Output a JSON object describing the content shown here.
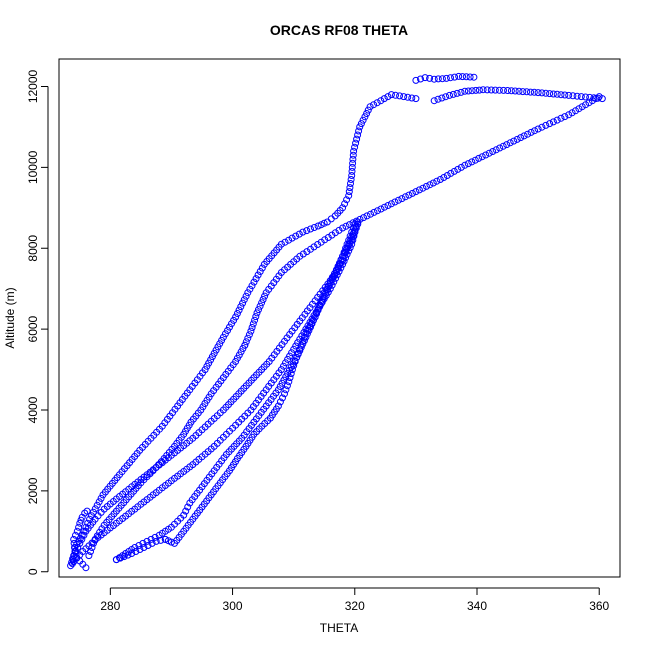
{
  "chart_data": {
    "type": "scatter",
    "title": "ORCAS RF08 THETA",
    "xlabel": "THETA",
    "ylabel": "Altitude (m)",
    "xlim": [
      271.6,
      363.4
    ],
    "ylim": [
      -130,
      12680
    ],
    "xticks": [
      280,
      300,
      320,
      340,
      360
    ],
    "yticks": [
      0,
      2000,
      4000,
      6000,
      8000,
      10000,
      12000
    ],
    "grid": false,
    "legend": "none",
    "marker": "open-circle",
    "color": "#0000ff",
    "traces": [
      {
        "x": [
          276.0,
          274.5,
          274.2,
          275.4,
          276.6,
          278.8,
          281.5,
          284.8,
          288.5,
          291.0,
          293.0,
          295.5,
          297.0,
          298.5,
          300.5,
          302.5,
          305.2,
          308.0,
          311.5,
          314.0,
          315.5,
          316.8,
          318.0,
          319.0,
          319.5,
          319.8,
          320.8,
          322.5,
          326.0,
          330.0
        ],
        "y": [
          100,
          350,
          600,
          900,
          1300,
          1900,
          2400,
          3000,
          3600,
          4100,
          4500,
          5000,
          5400,
          5800,
          6300,
          6900,
          7600,
          8100,
          8400,
          8550,
          8650,
          8800,
          9000,
          9300,
          9800,
          10400,
          11000,
          11500,
          11800,
          11700
        ]
      },
      {
        "x": [
          330.0,
          331.5,
          333.0,
          335.0,
          337.0,
          339.5
        ],
        "y": [
          12150,
          12220,
          12180,
          12200,
          12250,
          12230
        ]
      },
      {
        "x": [
          333.0,
          335.5,
          338.0,
          341.0,
          345.0,
          350.0,
          355.0,
          360.5
        ],
        "y": [
          11650,
          11780,
          11880,
          11920,
          11900,
          11850,
          11780,
          11700
        ]
      },
      {
        "x": [
          360.0,
          355.0,
          350.0,
          346.0,
          342.0,
          338.0,
          334.0,
          330.0,
          326.0,
          322.0,
          318.0,
          314.5,
          311.0,
          308.0,
          305.5,
          304.0,
          303.0,
          302.0
        ],
        "y": [
          11750,
          11300,
          10950,
          10650,
          10350,
          10050,
          9700,
          9400,
          9100,
          8800,
          8500,
          8150,
          7800,
          7400,
          6900,
          6400,
          5950,
          5600
        ]
      },
      {
        "x": [
          302.0,
          300.5,
          298.5,
          296.5,
          294.8,
          293.2,
          292.0,
          290.5,
          288.8,
          287.0,
          285.0,
          283.0,
          281.0,
          279.0,
          277.5,
          276.5
        ],
        "y": [
          5600,
          5200,
          4800,
          4400,
          4000,
          3700,
          3400,
          3100,
          2800,
          2500,
          2200,
          1850,
          1500,
          1150,
          800,
          400
        ]
      },
      {
        "x": [
          320.0,
          318.5,
          317.0,
          315.0,
          313.5,
          312.0,
          311.0,
          310.0,
          309.2,
          308.5,
          307.5,
          306.2,
          304.8,
          303.5,
          302.2,
          300.8,
          299.5,
          298.0,
          296.5,
          295.0,
          293.5,
          292.0,
          290.5,
          289.0
        ],
        "y": [
          8600,
          8000,
          7400,
          6900,
          6300,
          5900,
          5500,
          5100,
          4700,
          4400,
          4100,
          3800,
          3600,
          3400,
          3100,
          2800,
          2500,
          2200,
          1900,
          1600,
          1300,
          1000,
          700,
          800
        ]
      },
      {
        "x": [
          289.0,
          287.5,
          285.5,
          283.5,
          281.0
        ],
        "y": [
          800,
          750,
          600,
          450,
          300
        ]
      },
      {
        "x": [
          281.0,
          282.5,
          284.0,
          286.0,
          288.0,
          290.0,
          292.0,
          293.0,
          295.0,
          297.0,
          299.0,
          301.5,
          303.5,
          305.5,
          307.5,
          309.0,
          310.5,
          312.0,
          313.5,
          315.0,
          316.5,
          318.0,
          319.5,
          320.5
        ],
        "y": [
          300,
          450,
          600,
          750,
          900,
          1100,
          1400,
          1700,
          2100,
          2500,
          2900,
          3300,
          3700,
          4100,
          4500,
          4900,
          5300,
          5800,
          6300,
          6800,
          7300,
          7800,
          8200,
          8600
        ]
      },
      {
        "x": [
          273.5,
          274.0,
          275.0,
          276.0,
          277.5,
          279.0,
          281.0,
          283.5,
          286.0,
          288.5,
          291.0,
          293.5,
          296.0,
          298.5,
          301.0,
          303.5,
          306.0,
          308.5,
          311.0,
          313.5,
          316.0,
          318.0,
          319.0,
          320.0,
          320.5
        ],
        "y": [
          150,
          400,
          700,
          1000,
          1300,
          1550,
          1800,
          2100,
          2400,
          2700,
          3000,
          3300,
          3650,
          4000,
          4400,
          4800,
          5200,
          5700,
          6200,
          6700,
          7200,
          7700,
          8100,
          8450,
          8650
        ]
      },
      {
        "x": [
          274.0,
          275.5,
          278.0,
          281.0,
          284.0,
          287.0,
          290.0,
          293.5,
          297.0,
          300.0,
          303.0,
          305.5,
          308.0,
          310.0,
          312.0,
          314.0,
          316.0,
          318.0,
          319.5,
          320.2
        ],
        "y": [
          250,
          500,
          850,
          1200,
          1550,
          1900,
          2250,
          2650,
          3100,
          3550,
          4000,
          4500,
          5000,
          5500,
          6000,
          6500,
          7000,
          7600,
          8100,
          8500
        ]
      },
      {
        "x": [
          273.8,
          274.2,
          274.0,
          274.6,
          275.0,
          275.4,
          275.8,
          276.2
        ],
        "y": [
          200,
          500,
          800,
          1000,
          1200,
          1350,
          1450,
          1500
        ]
      }
    ]
  }
}
